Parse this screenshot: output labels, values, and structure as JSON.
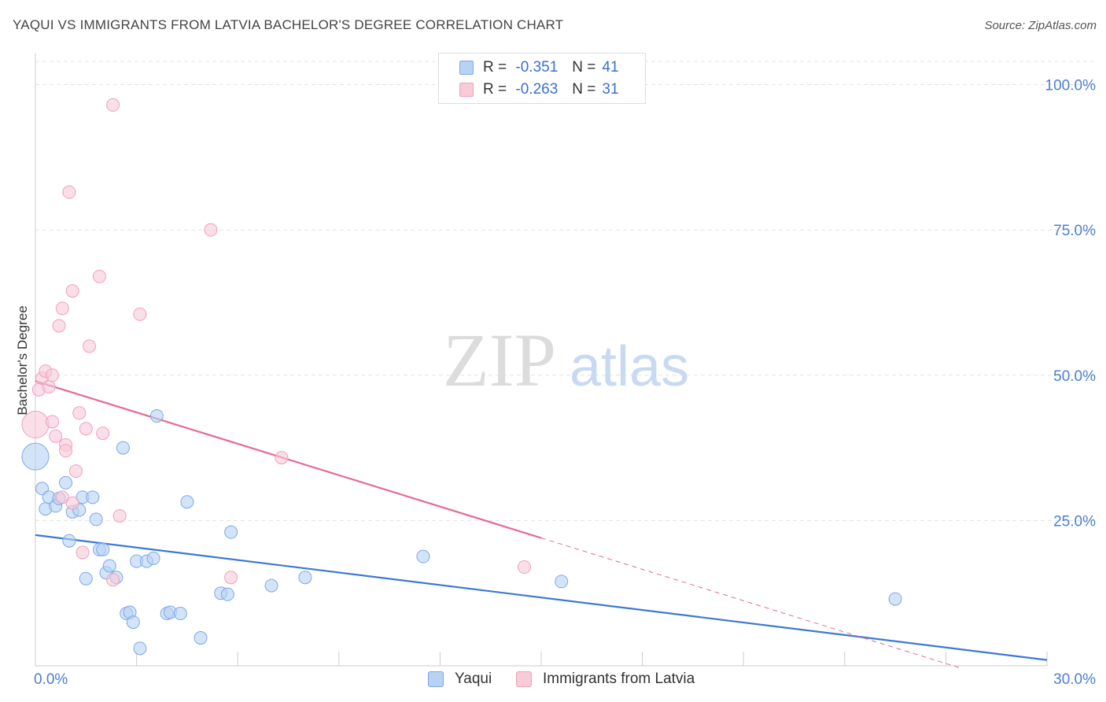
{
  "chart_data": {
    "type": "scatter",
    "title": "YAQUI VS IMMIGRANTS FROM LATVIA BACHELOR'S DEGREE CORRELATION CHART",
    "source": "Source: ZipAtlas.com",
    "xlabel": "",
    "ylabel": "Bachelor's Degree",
    "xlim": [
      0,
      30
    ],
    "ylim": [
      0,
      104
    ],
    "x_tick_labels": [
      "0.0%",
      "30.0%"
    ],
    "y_tick_labels": [
      "100.0%",
      "75.0%",
      "50.0%",
      "25.0%"
    ],
    "y_tick_values": [
      100,
      75,
      50,
      25
    ],
    "grid": true,
    "watermark": "ZIPatlas",
    "legend": {
      "rows": [
        {
          "r_label": "R =",
          "r_value": "-0.351",
          "n_label": "N =",
          "n_value": "41"
        },
        {
          "r_label": "R =",
          "r_value": "-0.263",
          "n_label": "N =",
          "n_value": "31"
        }
      ]
    },
    "series": [
      {
        "name": "Yaqui",
        "color": "#7aa9e8",
        "fill": "#b8d2f4",
        "line_color": "#3b78d8",
        "trend": {
          "x0": 0,
          "y0": 22.5,
          "x1": 30,
          "y1": 1
        },
        "points": [
          {
            "x": 0.0,
            "y": 36.0,
            "big": true
          },
          {
            "x": 0.2,
            "y": 30.5
          },
          {
            "x": 0.3,
            "y": 27.0
          },
          {
            "x": 0.4,
            "y": 29.0
          },
          {
            "x": 0.6,
            "y": 27.5
          },
          {
            "x": 0.7,
            "y": 28.8
          },
          {
            "x": 0.9,
            "y": 31.5
          },
          {
            "x": 1.0,
            "y": 21.5
          },
          {
            "x": 1.1,
            "y": 26.5
          },
          {
            "x": 1.3,
            "y": 26.8
          },
          {
            "x": 1.4,
            "y": 29.0
          },
          {
            "x": 1.5,
            "y": 15.0
          },
          {
            "x": 1.7,
            "y": 29.0
          },
          {
            "x": 1.8,
            "y": 25.2
          },
          {
            "x": 1.9,
            "y": 20.0
          },
          {
            "x": 2.0,
            "y": 20.0
          },
          {
            "x": 2.1,
            "y": 16.0
          },
          {
            "x": 2.2,
            "y": 17.2
          },
          {
            "x": 2.4,
            "y": 15.2
          },
          {
            "x": 2.6,
            "y": 37.5
          },
          {
            "x": 2.7,
            "y": 9.0
          },
          {
            "x": 2.8,
            "y": 9.2
          },
          {
            "x": 2.9,
            "y": 7.5
          },
          {
            "x": 3.0,
            "y": 18.0
          },
          {
            "x": 3.1,
            "y": 3.0
          },
          {
            "x": 3.3,
            "y": 18.0
          },
          {
            "x": 3.5,
            "y": 18.5
          },
          {
            "x": 3.6,
            "y": 43.0
          },
          {
            "x": 3.9,
            "y": 9.0
          },
          {
            "x": 4.0,
            "y": 9.2
          },
          {
            "x": 4.3,
            "y": 9.0
          },
          {
            "x": 4.5,
            "y": 28.2
          },
          {
            "x": 4.9,
            "y": 4.8
          },
          {
            "x": 5.5,
            "y": 12.5
          },
          {
            "x": 5.7,
            "y": 12.3
          },
          {
            "x": 5.8,
            "y": 23.0
          },
          {
            "x": 7.0,
            "y": 13.8
          },
          {
            "x": 8.0,
            "y": 15.2
          },
          {
            "x": 11.5,
            "y": 18.8
          },
          {
            "x": 15.6,
            "y": 14.5
          },
          {
            "x": 25.5,
            "y": 11.5
          }
        ]
      },
      {
        "name": "Immigrants from Latvia",
        "color": "#f0a0b8",
        "fill": "#f9cad8",
        "line_color": "#e46a92",
        "trend": {
          "x0": 0,
          "y0": 49,
          "x1": 15,
          "y1": 22
        },
        "trend_dashed": {
          "x0": 15,
          "y0": 22,
          "x1": 27.5,
          "y1": -0.5
        },
        "points": [
          {
            "x": 0.0,
            "y": 41.5,
            "big": true
          },
          {
            "x": 0.1,
            "y": 47.5
          },
          {
            "x": 0.2,
            "y": 49.5
          },
          {
            "x": 0.3,
            "y": 50.7
          },
          {
            "x": 0.4,
            "y": 48.0
          },
          {
            "x": 0.5,
            "y": 50.0
          },
          {
            "x": 0.5,
            "y": 42.0
          },
          {
            "x": 0.6,
            "y": 39.5
          },
          {
            "x": 0.7,
            "y": 58.5
          },
          {
            "x": 0.8,
            "y": 61.5
          },
          {
            "x": 0.8,
            "y": 29.0
          },
          {
            "x": 0.9,
            "y": 38.0
          },
          {
            "x": 0.9,
            "y": 37.0
          },
          {
            "x": 1.0,
            "y": 81.5
          },
          {
            "x": 1.1,
            "y": 28.0
          },
          {
            "x": 1.1,
            "y": 64.5
          },
          {
            "x": 1.2,
            "y": 33.5
          },
          {
            "x": 1.3,
            "y": 43.5
          },
          {
            "x": 1.4,
            "y": 19.5
          },
          {
            "x": 1.5,
            "y": 40.8
          },
          {
            "x": 1.6,
            "y": 55.0
          },
          {
            "x": 1.9,
            "y": 67.0
          },
          {
            "x": 2.0,
            "y": 40.0
          },
          {
            "x": 2.3,
            "y": 96.5
          },
          {
            "x": 2.3,
            "y": 14.8
          },
          {
            "x": 2.5,
            "y": 25.8
          },
          {
            "x": 3.1,
            "y": 60.5
          },
          {
            "x": 5.2,
            "y": 75.0
          },
          {
            "x": 5.8,
            "y": 15.2
          },
          {
            "x": 7.3,
            "y": 35.8
          },
          {
            "x": 14.5,
            "y": 17.0
          }
        ]
      }
    ]
  }
}
